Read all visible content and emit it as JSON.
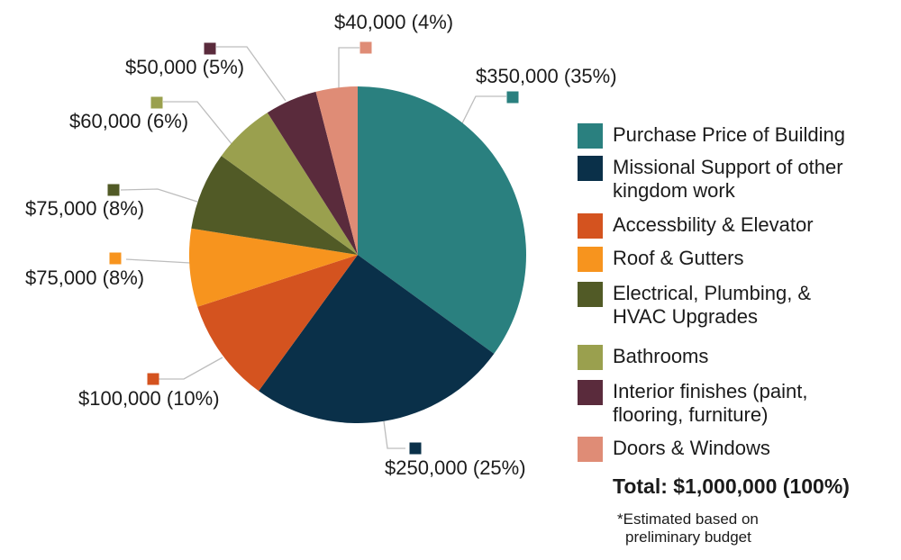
{
  "chart_data": {
    "type": "pie",
    "legend_position": "right",
    "start_angle_deg": 0,
    "direction": "clockwise",
    "total": {
      "label": "Total: $1,000,000 (100%)",
      "value": 1000000,
      "pct": 100
    },
    "footnote": "*Estimated based on\npreliminary budget",
    "slices": [
      {
        "name": "Purchase Price of Building",
        "value": 350000,
        "pct": 35,
        "callout": "$350,000 (35%)",
        "color": "#2A807F"
      },
      {
        "name": "Missional Support of other\nkingdom work",
        "value": 250000,
        "pct": 25,
        "callout": "$250,000 (25%)",
        "color": "#0A3049"
      },
      {
        "name": "Accessbility & Elevator",
        "value": 100000,
        "pct": 10,
        "callout": "$100,000 (10%)",
        "color": "#D4531F"
      },
      {
        "name": "Roof & Gutters",
        "value": 75000,
        "pct": 8,
        "callout": "$75,000 (8%)",
        "color": "#F7941E"
      },
      {
        "name": "Electrical, Plumbing, &\nHVAC Upgrades",
        "value": 75000,
        "pct": 8,
        "callout": "$75,000 (8%)",
        "color": "#515A26"
      },
      {
        "name": "Bathrooms",
        "value": 60000,
        "pct": 6,
        "callout": "$60,000 (6%)",
        "color": "#9AA04E"
      },
      {
        "name": "Interior finishes (paint,\nflooring, furniture)",
        "value": 50000,
        "pct": 5,
        "callout": "$50,000 (5%)",
        "color": "#5A2B3C"
      },
      {
        "name": "Doors & Windows",
        "value": 40000,
        "pct": 4,
        "callout": "$40,000 (4%)",
        "color": "#DF8C76"
      }
    ],
    "colors": {
      "leader_line": "#BDBDBD",
      "text": "#1B1B1B",
      "background": "#FFFFFF"
    }
  }
}
